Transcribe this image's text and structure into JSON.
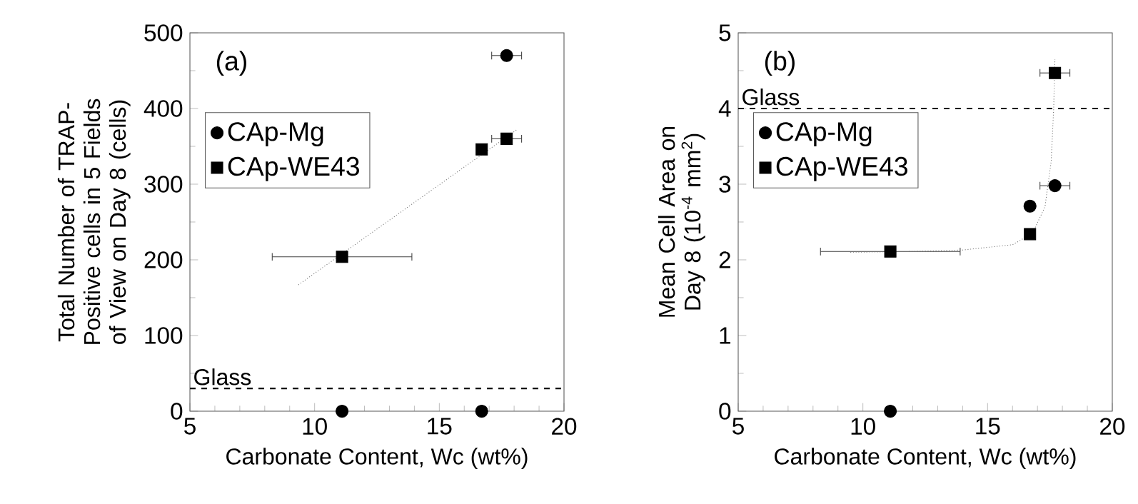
{
  "chart_data": [
    {
      "type": "scatter",
      "annotations": [
        "(a)"
      ],
      "xlabel": "Carbonate Content, Wc (wt%)",
      "ylabel": "Total Number of TRAP-Positive cells in 5 Fields of View on Day 8 (cells)",
      "xlim": [
        5,
        20
      ],
      "xticks": [
        5,
        10,
        15,
        20
      ],
      "ylim": [
        0,
        500
      ],
      "yticks": [
        0,
        100,
        200,
        300,
        400,
        500
      ],
      "legend": "top left",
      "series": [
        {
          "name": "CAp-Mg",
          "color": "#000000",
          "marker": "circle",
          "x": [
            11.1,
            16.7,
            17.7
          ],
          "values": [
            0,
            0,
            470
          ],
          "xerrors": [
            null,
            null,
            0.6
          ]
        },
        {
          "name": "CAp-WE43",
          "color": "#000000",
          "marker": "square",
          "x": [
            11.1,
            16.7,
            17.7
          ],
          "values": [
            204,
            346,
            360
          ],
          "xerrors": [
            2.8,
            null,
            0.6
          ]
        },
        {
          "type": "line",
          "color": "#707070",
          "marker": "none",
          "line_style": "dotted",
          "x": [
            9.35,
            18.15
          ],
          "values": [
            167,
            373
          ]
        }
      ],
      "ref_lines": [
        {
          "axis": "y",
          "value": 30,
          "label": "Glass",
          "color": "#000000",
          "line_style": "dashed"
        }
      ]
    },
    {
      "type": "scatter",
      "annotations": [
        "(b)"
      ],
      "xlabel": "Carbonate Content, Wc (wt%)",
      "ylabel": "Mean Cell Area on Day 8 (10$^{-4}$ mm$^{2}$)",
      "xlim": [
        5,
        20
      ],
      "xticks": [
        5,
        10,
        15,
        20
      ],
      "ylim": [
        0,
        5
      ],
      "yticks": [
        0,
        1,
        2,
        3,
        4,
        5
      ],
      "legend": "top left",
      "series": [
        {
          "name": "CAp-Mg",
          "color": "#000000",
          "marker": "circle",
          "x": [
            11.1,
            16.7,
            17.7
          ],
          "values": [
            0,
            2.71,
            2.98
          ],
          "xerrors": [
            null,
            null,
            0.6
          ]
        },
        {
          "name": "CAp-WE43",
          "color": "#000000",
          "marker": "square",
          "x": [
            11.1,
            16.7,
            17.7
          ],
          "values": [
            2.11,
            2.34,
            4.47
          ],
          "xerrors": [
            2.8,
            null,
            0.6
          ]
        },
        {
          "type": "line",
          "color": "#707070",
          "marker": "none",
          "line_style": "dotted",
          "x": [
            9.5,
            12,
            14,
            16,
            16.8,
            17.3,
            17.55,
            17.65,
            17.7
          ],
          "values": [
            2.1,
            2.11,
            2.13,
            2.2,
            2.35,
            2.7,
            3.3,
            4.0,
            4.65
          ]
        }
      ],
      "ref_lines": [
        {
          "axis": "y",
          "value": 4,
          "label": "Glass",
          "color": "#000000",
          "line_style": "dashed"
        }
      ]
    }
  ]
}
